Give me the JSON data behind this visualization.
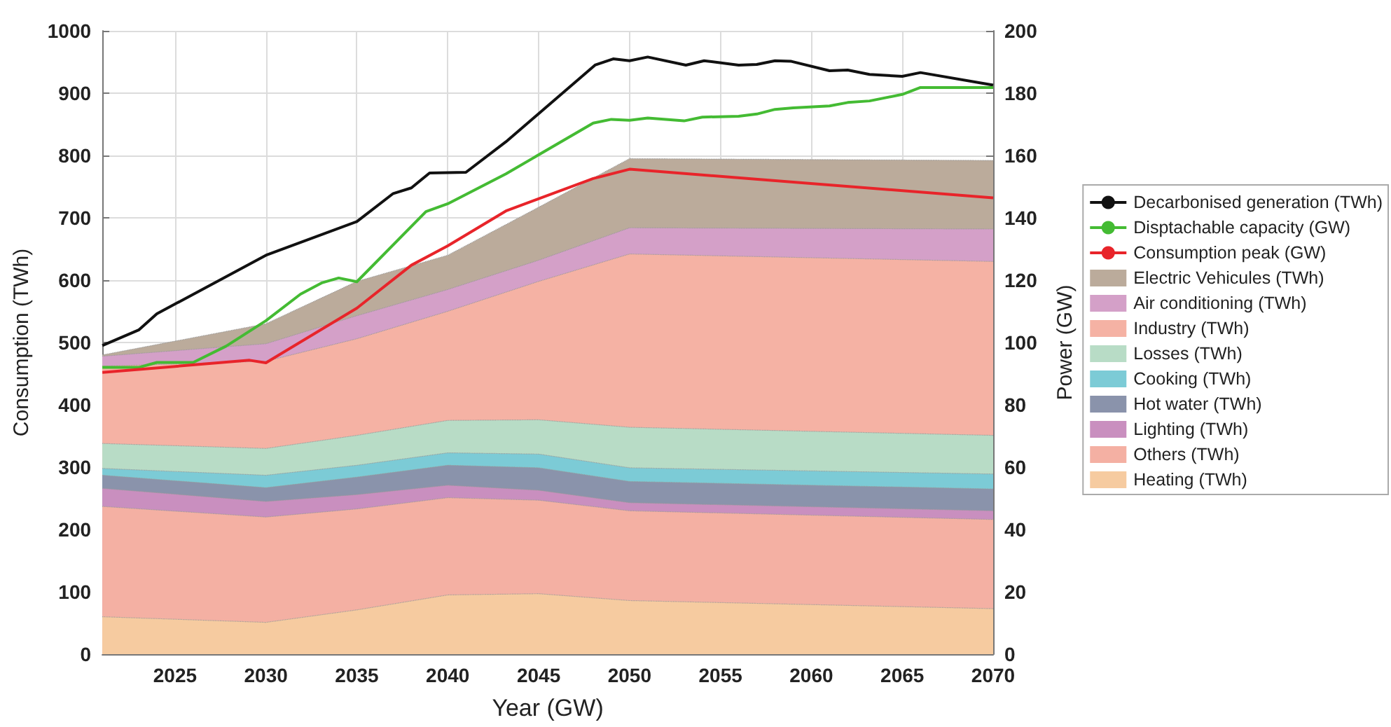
{
  "chart_data": {
    "type": "area",
    "xlabel": "Year (GW)",
    "ylabel": "Consumption (TWh)",
    "y2label": "Power (GW)",
    "xlim": [
      2021,
      2070
    ],
    "xticks": [
      2025,
      2030,
      2035,
      2040,
      2045,
      2050,
      2055,
      2060,
      2065,
      2070
    ],
    "ylim": [
      0,
      1000
    ],
    "yticks": [
      0,
      100,
      200,
      300,
      400,
      500,
      600,
      700,
      800,
      900,
      1000
    ],
    "y2lim": [
      0,
      200
    ],
    "y2ticks": [
      0,
      20,
      40,
      60,
      80,
      100,
      120,
      140,
      160,
      180,
      200
    ],
    "x": [
      2021,
      2030,
      2035,
      2040,
      2045,
      2050,
      2070
    ],
    "stacked": true,
    "grid": true,
    "legend": "right",
    "marker": "none",
    "line_style": "solid",
    "series": [
      {
        "name": "Heating (TWh)",
        "color": "#f6cba0",
        "values": [
          60,
          51,
          71,
          95,
          97,
          86,
          73
        ]
      },
      {
        "name": "Others (TWh)",
        "color": "#f4b0a3",
        "values": [
          177,
          169,
          162,
          156,
          150,
          144,
          143
        ]
      },
      {
        "name": "Lighting (TWh)",
        "color": "#c98fbf",
        "values": [
          29,
          25,
          23,
          20,
          16,
          13,
          14
        ]
      },
      {
        "name": "Hot water (TWh)",
        "color": "#8a93ab",
        "values": [
          21,
          22,
          28,
          32,
          36,
          34,
          35
        ]
      },
      {
        "name": "Cooking (TWh)",
        "color": "#7ccbd6",
        "values": [
          11,
          20,
          19,
          20,
          22,
          22,
          24
        ]
      },
      {
        "name": "Losses (TWh)",
        "color": "#b8dcc6",
        "values": [
          40,
          43,
          48,
          52,
          55,
          65,
          62
        ]
      },
      {
        "name": "Industry (TWh)",
        "color": "#f5b2a4",
        "values": [
          124,
          140,
          155,
          175,
          222,
          278,
          279
        ]
      },
      {
        "name": "Air conditioning (TWh)",
        "color": "#d4a0c8",
        "values": [
          16,
          28,
          37,
          35,
          34,
          42,
          52
        ]
      },
      {
        "name": "Electric Vehicules (TWh)",
        "color": "#bbab9b",
        "values": [
          2,
          32,
          55,
          55,
          85,
          111,
          110
        ]
      },
      {
        "name": "Decarbonised generation (TWh)",
        "type": "line",
        "color": "#111111",
        "x": [
          2021,
          2023,
          2024,
          2030,
          2035,
          2037,
          2038,
          2039,
          2041,
          2043.2,
          2048.1,
          2049.1,
          2050,
          2051,
          2053.1,
          2054.1,
          2056,
          2057,
          2058,
          2058.9,
          2061,
          2062,
          2063.2,
          2065,
          2066,
          2070
        ],
        "values": [
          495,
          520,
          546,
          640,
          694,
          739,
          748,
          772,
          773,
          822,
          945,
          955,
          952,
          958,
          945,
          952,
          945,
          946,
          952,
          951,
          936,
          937,
          930,
          927,
          933,
          913
        ]
      },
      {
        "name": "Disptachable capacity (GW)",
        "type": "line",
        "axis": "y2",
        "color": "#44bb33",
        "x": [
          2021,
          2023,
          2024,
          2026,
          2027.8,
          2030,
          2031.9,
          2033.1,
          2034,
          2035,
          2038.8,
          2040,
          2043.2,
          2048,
          2049,
          2050,
          2051,
          2053,
          2054,
          2056,
          2057,
          2058,
          2059,
          2061,
          2062,
          2063.2,
          2065,
          2066,
          2070
        ],
        "values": [
          92,
          92,
          93.6,
          93.6,
          98.8,
          107,
          115.5,
          119.2,
          120.7,
          119.5,
          142,
          144.5,
          154.1,
          170.4,
          171.6,
          171.3,
          172,
          171.1,
          172.3,
          172.6,
          173.3,
          174.8,
          175.3,
          175.9,
          177,
          177.5,
          179.6,
          181.8,
          181.8
        ]
      },
      {
        "name": "Consumption peak (GW)",
        "type": "line",
        "axis": "y2",
        "color": "#e8242a",
        "x": [
          2021,
          2029.1,
          2030,
          2035,
          2038,
          2040,
          2043.2,
          2048,
          2050,
          2070
        ],
        "values": [
          90.4,
          94.3,
          93.5,
          111,
          124.8,
          131,
          142.2,
          152.6,
          155.6,
          146.4
        ]
      }
    ]
  }
}
